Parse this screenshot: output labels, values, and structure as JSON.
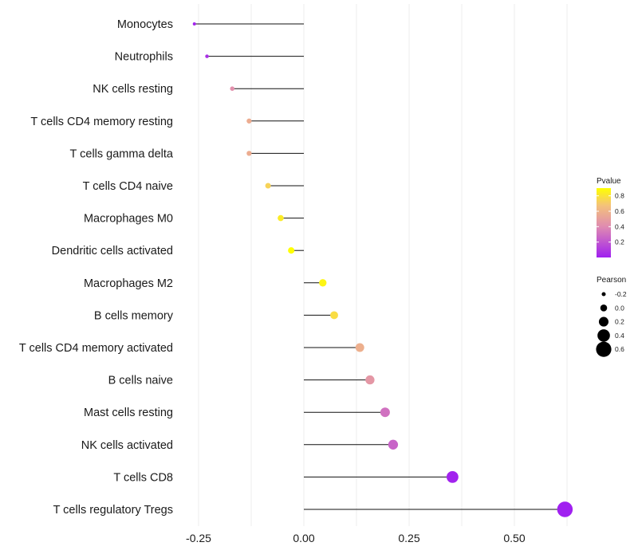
{
  "chart_data": {
    "type": "lollipop",
    "xlabel": "",
    "ylabel": "",
    "xlim": [
      -0.28,
      0.62
    ],
    "xticks": [
      -0.25,
      0.0,
      0.25,
      0.5
    ],
    "xtick_labels": [
      "-0.25",
      "0.00",
      "0.25",
      "0.50"
    ],
    "grid": true,
    "baseline": 0.0,
    "categories": [
      "Monocytes",
      "Neutrophils",
      "NK cells resting",
      "T cells CD4 memory resting",
      "T cells gamma delta",
      "T cells CD4 naive",
      "Macrophages M0",
      "Dendritic cells activated",
      "Macrophages M2",
      "B cells memory",
      "T cells CD4 memory activated",
      "B cells naive",
      "Mast cells resting",
      "NK cells activated",
      "T cells CD8",
      "T cells regulatory  Tregs"
    ],
    "pearson": [
      -0.26,
      -0.23,
      -0.17,
      -0.13,
      -0.13,
      -0.085,
      -0.055,
      -0.03,
      0.045,
      0.072,
      0.133,
      0.157,
      0.193,
      0.212,
      0.353,
      0.62
    ],
    "pvalue": [
      0.02,
      0.06,
      0.42,
      0.55,
      0.55,
      0.72,
      0.82,
      0.9,
      0.86,
      0.76,
      0.56,
      0.45,
      0.3,
      0.25,
      0.01,
      0.0
    ],
    "legend": {
      "color": {
        "title": "Pvalue",
        "ticks": [
          0.8,
          0.6,
          0.4,
          0.2
        ],
        "tick_labels": [
          "0.8",
          "0.6",
          "0.4",
          "0.2"
        ],
        "range": [
          0.0,
          0.9
        ],
        "low_color": "#a020f0",
        "mid_color": "#e08cb0",
        "high_color": "#ffff00"
      },
      "size": {
        "title": "Pearson",
        "values": [
          -0.2,
          0.0,
          0.2,
          0.4,
          0.6
        ],
        "labels": [
          "-0.2",
          "0.0",
          "0.2",
          "0.4",
          "0.6"
        ]
      },
      "placement": "right"
    }
  }
}
